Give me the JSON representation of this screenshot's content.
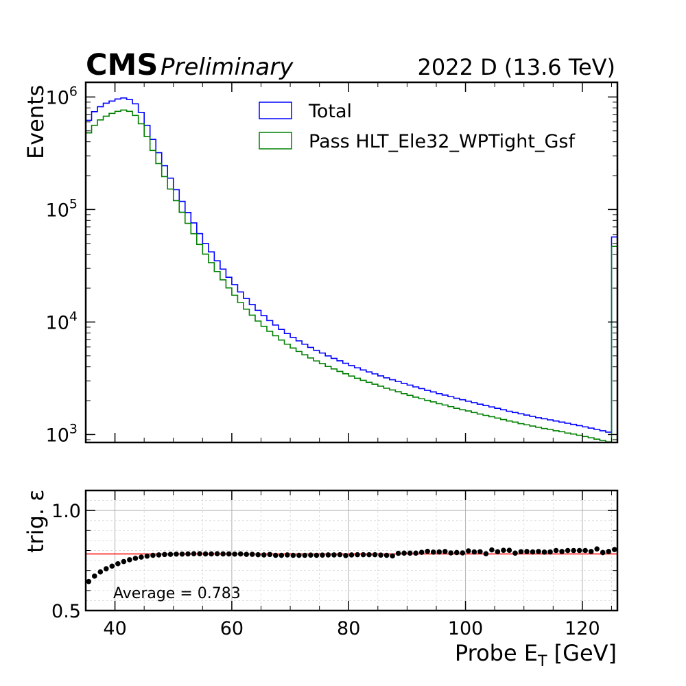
{
  "header": {
    "experiment": "CMS",
    "status": "Preliminary",
    "run_label": "2022 D (13.6 TeV)"
  },
  "chart_data": [
    {
      "type": "line",
      "style": "step histogram",
      "ylabel": "Events",
      "yscale": "log",
      "ylim": [
        850,
        1350000
      ],
      "xlim": [
        35,
        126
      ],
      "yticks": [
        {
          "value": 1000,
          "base": "10",
          "exp": "3"
        },
        {
          "value": 10000,
          "base": "10",
          "exp": "4"
        },
        {
          "value": 100000,
          "base": "10",
          "exp": "5"
        },
        {
          "value": 1000000,
          "base": "10",
          "exp": "6"
        }
      ],
      "legend_position": "top-right",
      "bin_edges": [
        35,
        36,
        37,
        38,
        39,
        40,
        41,
        42,
        43,
        44,
        45,
        46,
        47,
        48,
        49,
        50,
        51,
        52,
        53,
        54,
        55,
        56,
        57,
        58,
        59,
        60,
        61,
        62,
        63,
        64,
        65,
        66,
        67,
        68,
        69,
        70,
        71,
        72,
        73,
        74,
        75,
        76,
        77,
        78,
        79,
        80,
        81,
        82,
        83,
        84,
        85,
        86,
        87,
        88,
        89,
        90,
        91,
        92,
        93,
        94,
        95,
        96,
        97,
        98,
        99,
        100,
        101,
        102,
        103,
        104,
        105,
        106,
        107,
        108,
        109,
        110,
        111,
        112,
        113,
        114,
        115,
        116,
        117,
        118,
        119,
        120,
        121,
        122,
        123,
        124,
        125,
        126
      ],
      "overflow_bin": [
        125,
        126
      ],
      "series": [
        {
          "name": "Total",
          "color": "#0000ff",
          "values": [
            620000,
            740000,
            820000,
            880000,
            920000,
            960000,
            980000,
            950000,
            870000,
            730000,
            560000,
            420000,
            320000,
            245000,
            190000,
            150000,
            118000,
            94000,
            76000,
            61000,
            50000,
            42000,
            35000,
            29500,
            25000,
            21500,
            18500,
            16200,
            14300,
            12700,
            11400,
            10300,
            9400,
            8600,
            7900,
            7300,
            6800,
            6350,
            5950,
            5600,
            5300,
            5000,
            4750,
            4520,
            4300,
            4100,
            3920,
            3750,
            3600,
            3460,
            3320,
            3190,
            3070,
            2960,
            2850,
            2750,
            2650,
            2560,
            2470,
            2390,
            2310,
            2240,
            2170,
            2100,
            2040,
            1980,
            1920,
            1860,
            1810,
            1760,
            1710,
            1660,
            1610,
            1570,
            1530,
            1490,
            1450,
            1410,
            1380,
            1350,
            1320,
            1290,
            1260,
            1230,
            1200,
            1170,
            1140,
            1110,
            1080,
            1050,
            57000
          ]
        },
        {
          "name": "Pass HLT_Ele32_WPTight_Gsf",
          "color": "#008000",
          "values": [
            480000,
            560000,
            625000,
            675000,
            715000,
            745000,
            765000,
            745000,
            685000,
            578000,
            445000,
            335000,
            256000,
            196000,
            152000,
            120000,
            94500,
            75300,
            60900,
            48900,
            40100,
            33700,
            28100,
            23700,
            20100,
            17300,
            14900,
            13000,
            11500,
            10200,
            9150,
            8270,
            7550,
            6910,
            6350,
            5870,
            5470,
            5110,
            4790,
            4510,
            4270,
            4030,
            3830,
            3640,
            3470,
            3310,
            3160,
            3030,
            2910,
            2800,
            2690,
            2580,
            2490,
            2400,
            2310,
            2230,
            2150,
            2080,
            2010,
            1950,
            1880,
            1830,
            1770,
            1710,
            1660,
            1620,
            1570,
            1520,
            1480,
            1440,
            1400,
            1360,
            1320,
            1290,
            1250,
            1220,
            1190,
            1160,
            1130,
            1110,
            1080,
            1060,
            1030,
            1010,
            985,
            960,
            935,
            910,
            885,
            860,
            47000
          ]
        }
      ]
    },
    {
      "type": "scatter",
      "style": "points with error bars",
      "ylabel": "trig. ε",
      "xlabel_main": "Probe E",
      "xlabel_sub": "T",
      "xlabel_unit": " [GeV]",
      "xlim": [
        35,
        126
      ],
      "ylim": [
        0.5,
        1.1
      ],
      "xticks": [
        40,
        60,
        80,
        100,
        120
      ],
      "yticks": [
        "0.5",
        "1.0"
      ],
      "grid": true,
      "average_value": 0.783,
      "average_label": "Average = 0.783",
      "average_color": "#ff0000",
      "x": [
        35.5,
        36.5,
        37.5,
        38.5,
        39.5,
        40.5,
        41.5,
        42.5,
        43.5,
        44.5,
        45.5,
        46.5,
        47.5,
        48.5,
        49.5,
        50.5,
        51.5,
        52.5,
        53.5,
        54.5,
        55.5,
        56.5,
        57.5,
        58.5,
        59.5,
        60.5,
        61.5,
        62.5,
        63.5,
        64.5,
        65.5,
        66.5,
        67.5,
        68.5,
        69.5,
        70.5,
        71.5,
        72.5,
        73.5,
        74.5,
        75.5,
        76.5,
        77.5,
        78.5,
        79.5,
        80.5,
        81.5,
        82.5,
        83.5,
        84.5,
        85.5,
        86.5,
        87.5,
        88.5,
        89.5,
        90.5,
        91.5,
        92.5,
        93.5,
        94.5,
        95.5,
        96.5,
        97.5,
        98.5,
        99.5,
        100.5,
        101.5,
        102.5,
        103.5,
        104.5,
        105.5,
        106.5,
        107.5,
        108.5,
        109.5,
        110.5,
        111.5,
        112.5,
        113.5,
        114.5,
        115.5,
        116.5,
        117.5,
        118.5,
        119.5,
        120.5,
        121.5,
        122.5,
        123.5,
        124.5,
        125.5
      ],
      "y": [
        0.645,
        0.672,
        0.693,
        0.709,
        0.722,
        0.734,
        0.745,
        0.754,
        0.761,
        0.767,
        0.772,
        0.776,
        0.778,
        0.78,
        0.781,
        0.782,
        0.782,
        0.783,
        0.784,
        0.784,
        0.783,
        0.783,
        0.784,
        0.783,
        0.783,
        0.782,
        0.783,
        0.781,
        0.781,
        0.779,
        0.778,
        0.78,
        0.776,
        0.776,
        0.778,
        0.776,
        0.776,
        0.776,
        0.777,
        0.776,
        0.777,
        0.778,
        0.778,
        0.779,
        0.775,
        0.778,
        0.779,
        0.779,
        0.779,
        0.779,
        0.777,
        0.776,
        0.773,
        0.786,
        0.787,
        0.787,
        0.787,
        0.791,
        0.796,
        0.792,
        0.793,
        0.795,
        0.788,
        0.79,
        0.788,
        0.798,
        0.793,
        0.794,
        0.784,
        0.803,
        0.794,
        0.801,
        0.801,
        0.787,
        0.794,
        0.795,
        0.793,
        0.795,
        0.792,
        0.793,
        0.8,
        0.795,
        0.8,
        0.8,
        0.8,
        0.8,
        0.795,
        0.808,
        0.79,
        0.795,
        0.805
      ],
      "yerr": [
        0.002,
        0.002,
        0.002,
        0.002,
        0.002,
        0.002,
        0.002,
        0.002,
        0.002,
        0.002,
        0.002,
        0.002,
        0.002,
        0.002,
        0.002,
        0.002,
        0.002,
        0.002,
        0.002,
        0.002,
        0.002,
        0.002,
        0.002,
        0.002,
        0.002,
        0.002,
        0.002,
        0.002,
        0.002,
        0.002,
        0.002,
        0.002,
        0.002,
        0.002,
        0.002,
        0.002,
        0.002,
        0.002,
        0.002,
        0.002,
        0.002,
        0.002,
        0.002,
        0.002,
        0.002,
        0.002,
        0.002,
        0.002,
        0.002,
        0.002,
        0.002,
        0.002,
        0.002,
        0.003,
        0.003,
        0.003,
        0.003,
        0.003,
        0.004,
        0.004,
        0.004,
        0.004,
        0.004,
        0.005,
        0.005,
        0.006,
        0.006,
        0.006,
        0.006,
        0.007,
        0.007,
        0.008,
        0.008,
        0.008,
        0.008,
        0.009,
        0.009,
        0.009,
        0.009,
        0.01,
        0.01,
        0.01,
        0.011,
        0.011,
        0.011,
        0.011,
        0.012,
        0.012,
        0.013,
        0.013,
        0.004
      ]
    }
  ]
}
